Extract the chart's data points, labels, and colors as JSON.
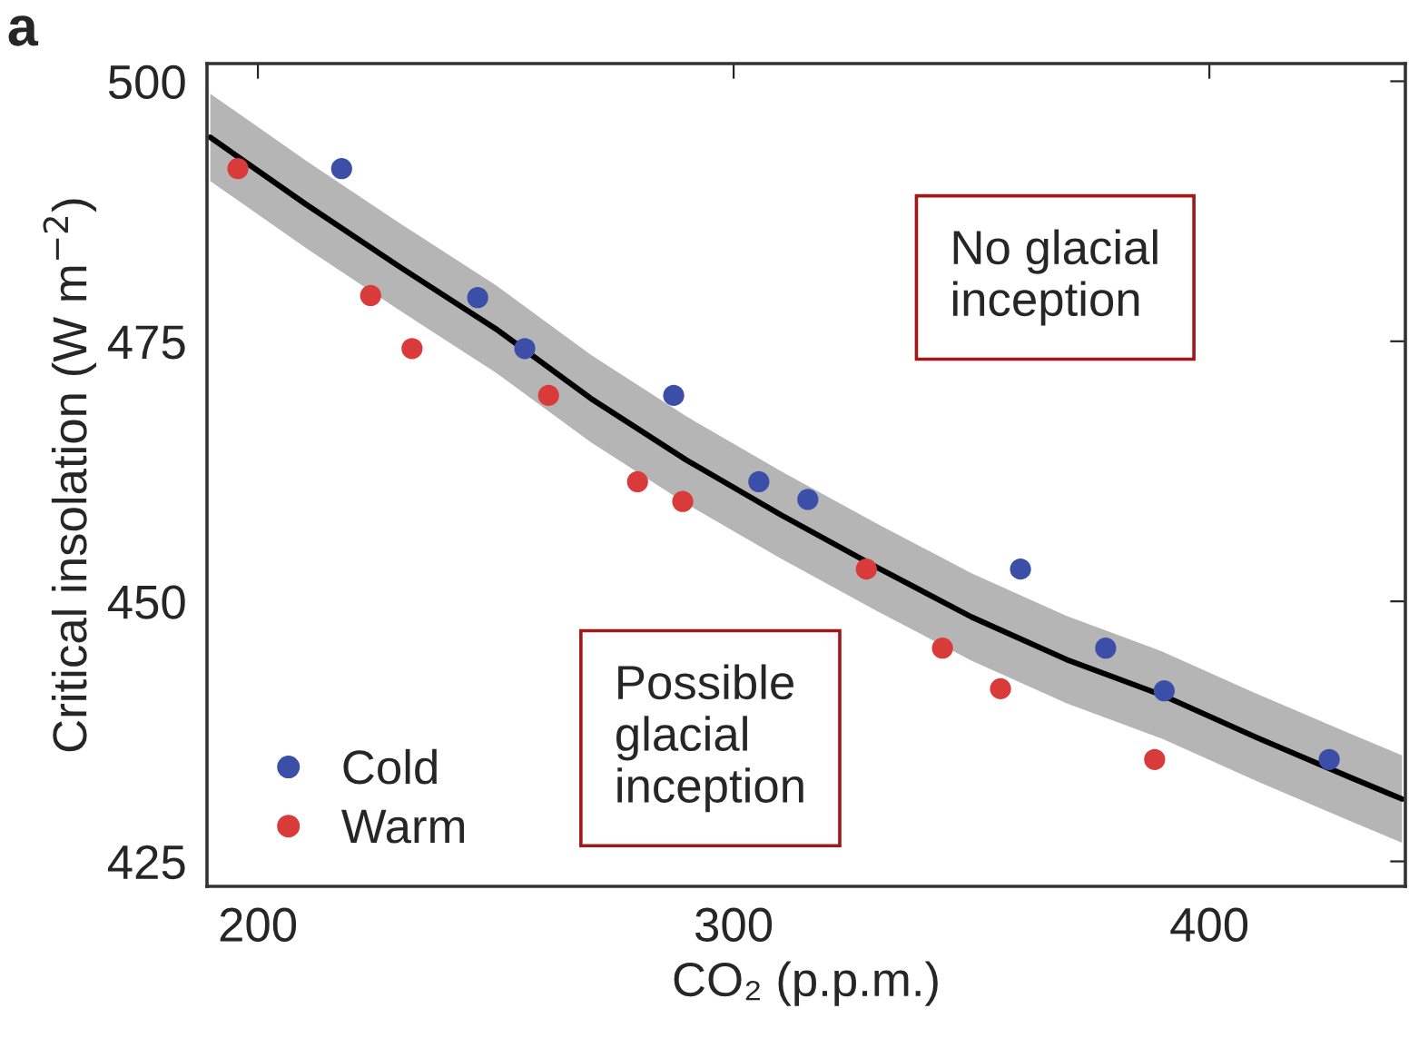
{
  "chart_data": {
    "type": "scatter",
    "xlabel": "CO₂ (p.p.m.)",
    "ylabel": "Critical insolation (W m$^{−2}$)",
    "annotations": [
      "a",
      "No glacial\ninception",
      "Possible\nglacial\ninception"
    ],
    "xlim": [
      189.3,
      441.2
    ],
    "ylim": [
      422.6,
      501.7
    ],
    "xticks": [
      200,
      300,
      400
    ],
    "yticks": [
      425,
      450,
      475,
      500
    ],
    "grid": false,
    "legend": "bottom left",
    "marker": "circle",
    "series": [
      {
        "type": "line",
        "marker": "none",
        "color": "#000000",
        "x": [
          190,
          210,
          230,
          250,
          270,
          290,
          310,
          330,
          350,
          370,
          390,
          410,
          430,
          440.5
        ],
        "values": [
          494.6,
          488.2,
          482.1,
          476.2,
          469.5,
          463.6,
          458.3,
          453.3,
          448.5,
          444.4,
          441,
          436.9,
          433,
          431
        ],
        "lower": [
          490.4,
          484,
          477.9,
          472,
          465.3,
          459.4,
          454.1,
          449.1,
          444.3,
          440.2,
          436.8,
          432.7,
          428.8,
          426.8
        ],
        "upper": [
          498.8,
          492.4,
          486.3,
          480.4,
          473.7,
          467.8,
          462.5,
          457.5,
          452.7,
          448.6,
          445.2,
          441.1,
          437.2,
          435.2
        ]
      },
      {
        "name": "Cold",
        "color": "#3b4fa8",
        "x": [
          217.6,
          246.2,
          256.1,
          287.4,
          305.3,
          315.6,
          360.3,
          378.2,
          390.5,
          425.2
        ],
        "values": [
          491.6,
          479.2,
          474.3,
          469.8,
          461.5,
          459.8,
          453.1,
          445.5,
          441.4,
          434.8
        ]
      },
      {
        "name": "Warm",
        "color": "#d93a3a",
        "x": [
          195.8,
          223.7,
          232.4,
          261.1,
          279.8,
          289.3,
          327.9,
          343.9,
          356.1,
          388.5
        ],
        "values": [
          491.6,
          479.4,
          474.3,
          469.8,
          461.5,
          459.6,
          453.1,
          445.5,
          441.6,
          434.8
        ]
      }
    ]
  }
}
